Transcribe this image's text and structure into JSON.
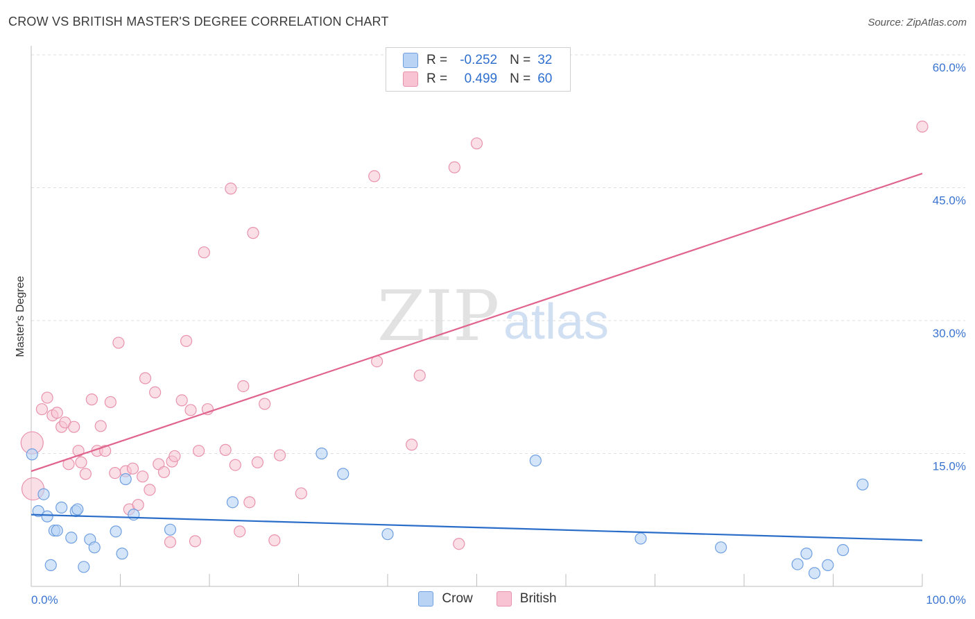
{
  "title": "CROW VS BRITISH MASTER'S DEGREE CORRELATION CHART",
  "source": "Source: ZipAtlas.com",
  "watermark": {
    "zip": "ZIP",
    "atlas": "atlas"
  },
  "legend": {
    "crow": {
      "r_label": "R =",
      "r_value": "-0.252",
      "n_label": "N =",
      "n_value": "32"
    },
    "british": {
      "r_label": "R =",
      "r_value": "0.499",
      "n_label": "N =",
      "n_value": "60"
    }
  },
  "colors": {
    "crow_fill": "#b9d3f5",
    "crow_stroke": "#6f9fe0",
    "crow_line": "#2a6dc9",
    "british_fill": "#f8c4d3",
    "british_stroke": "#e892ad",
    "british_line": "#e0638e",
    "tick_label": "#3a74d0"
  },
  "chart_data": {
    "type": "scatter",
    "title": "CROW VS BRITISH MASTER'S DEGREE CORRELATION CHART",
    "ylabel": "Master's Degree",
    "xlabel": "",
    "xlim": [
      0,
      100
    ],
    "ylim": [
      0,
      60
    ],
    "x_tick_labels": [
      "0.0%",
      "100.0%"
    ],
    "y_ticks": [
      15,
      30,
      45,
      60
    ],
    "y_tick_labels": [
      "15.0%",
      "30.0%",
      "45.0%",
      "60.0%"
    ],
    "grid": true,
    "legend_position": "top-center",
    "series": [
      {
        "name": "Crow",
        "points": [
          [
            0.1,
            14.9
          ],
          [
            0.8,
            8.5
          ],
          [
            1.4,
            10.4
          ],
          [
            1.8,
            7.9
          ],
          [
            2.2,
            2.4
          ],
          [
            2.6,
            6.3
          ],
          [
            2.9,
            6.3
          ],
          [
            3.4,
            8.9
          ],
          [
            4.5,
            5.5
          ],
          [
            5.0,
            8.5
          ],
          [
            5.2,
            8.7
          ],
          [
            5.9,
            2.2
          ],
          [
            6.6,
            5.3
          ],
          [
            7.1,
            4.4
          ],
          [
            9.5,
            6.2
          ],
          [
            10.2,
            3.7
          ],
          [
            10.6,
            12.1
          ],
          [
            11.5,
            8.1
          ],
          [
            15.6,
            6.4
          ],
          [
            22.6,
            9.5
          ],
          [
            32.6,
            15.0
          ],
          [
            35.0,
            12.7
          ],
          [
            40.0,
            5.9
          ],
          [
            56.6,
            14.2
          ],
          [
            68.4,
            5.4
          ],
          [
            77.4,
            4.4
          ],
          [
            86.0,
            2.5
          ],
          [
            87.0,
            3.7
          ],
          [
            87.9,
            1.5
          ],
          [
            89.4,
            2.4
          ],
          [
            91.1,
            4.1
          ],
          [
            93.3,
            11.5
          ]
        ],
        "trend": {
          "x": [
            0,
            100
          ],
          "y": [
            8.1,
            5.2
          ]
        }
      },
      {
        "name": "British",
        "points": [
          [
            0.1,
            16.2
          ],
          [
            0.2,
            11.0
          ],
          [
            1.2,
            20.0
          ],
          [
            1.8,
            21.3
          ],
          [
            2.4,
            19.3
          ],
          [
            2.9,
            19.6
          ],
          [
            3.4,
            18.0
          ],
          [
            3.8,
            18.5
          ],
          [
            4.2,
            13.8
          ],
          [
            4.8,
            18.0
          ],
          [
            5.3,
            15.3
          ],
          [
            5.6,
            14.0
          ],
          [
            6.1,
            12.7
          ],
          [
            6.8,
            21.1
          ],
          [
            7.4,
            15.3
          ],
          [
            7.8,
            18.1
          ],
          [
            8.3,
            15.3
          ],
          [
            8.9,
            20.8
          ],
          [
            9.4,
            12.8
          ],
          [
            9.8,
            27.5
          ],
          [
            10.6,
            13.0
          ],
          [
            11.0,
            8.7
          ],
          [
            11.4,
            13.3
          ],
          [
            12.0,
            9.2
          ],
          [
            12.5,
            12.4
          ],
          [
            12.8,
            23.5
          ],
          [
            13.3,
            10.9
          ],
          [
            13.9,
            21.9
          ],
          [
            14.3,
            13.8
          ],
          [
            14.9,
            12.9
          ],
          [
            15.6,
            5.0
          ],
          [
            15.8,
            14.1
          ],
          [
            16.1,
            14.7
          ],
          [
            16.9,
            21.0
          ],
          [
            17.4,
            27.7
          ],
          [
            17.9,
            19.9
          ],
          [
            18.4,
            5.1
          ],
          [
            18.8,
            15.3
          ],
          [
            19.4,
            37.7
          ],
          [
            19.8,
            20.0
          ],
          [
            21.8,
            15.4
          ],
          [
            22.4,
            44.9
          ],
          [
            22.9,
            13.7
          ],
          [
            23.4,
            6.2
          ],
          [
            23.8,
            22.6
          ],
          [
            24.5,
            9.5
          ],
          [
            24.9,
            39.9
          ],
          [
            25.4,
            14.0
          ],
          [
            26.2,
            20.6
          ],
          [
            27.3,
            5.2
          ],
          [
            27.9,
            14.8
          ],
          [
            30.3,
            10.5
          ],
          [
            38.5,
            46.3
          ],
          [
            38.8,
            25.4
          ],
          [
            42.7,
            16.0
          ],
          [
            43.6,
            23.8
          ],
          [
            47.5,
            47.3
          ],
          [
            48.0,
            4.8
          ],
          [
            50.0,
            50.0
          ],
          [
            100.0,
            51.9
          ]
        ],
        "trend": {
          "x": [
            0,
            100
          ],
          "y": [
            13.0,
            46.6
          ]
        }
      }
    ]
  },
  "bottom_legend": [
    "Crow",
    "British"
  ]
}
